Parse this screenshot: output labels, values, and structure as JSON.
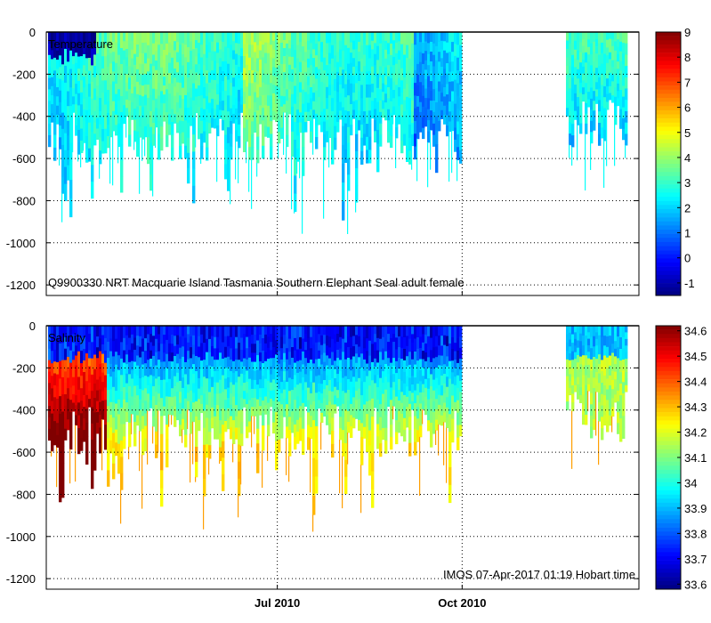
{
  "chart_data": [
    {
      "type": "heatmap",
      "panel": "top",
      "title": "Temperature",
      "ylim": [
        -1250,
        0
      ],
      "yticks": [
        0,
        -200,
        -400,
        -600,
        -800,
        -1000,
        -1200
      ],
      "ytick_labels": [
        "0",
        "-200",
        "-400",
        "-600",
        "-800",
        "-1000",
        "-1200"
      ],
      "xlim": [
        "2010-03-08",
        "2010-12-28"
      ],
      "xticks": [
        "2010-07-01",
        "2010-10-01"
      ],
      "colorbar": {
        "min": -1.5,
        "max": 9,
        "ticks": [
          9,
          8,
          7,
          6,
          5,
          4,
          3,
          2,
          1,
          0,
          -1
        ],
        "tick_labels": [
          "9",
          "8",
          "7",
          "6",
          "5",
          "4",
          "3",
          "2",
          "1",
          "0",
          "-1"
        ]
      },
      "annotation": "Q9900330 NRT Macquarie Island Tasmania Southern Elephant Seal adult female",
      "data_gap": [
        "2010-10-01",
        "2010-11-20"
      ]
    },
    {
      "type": "heatmap",
      "panel": "bottom",
      "title": "Salinity",
      "ylim": [
        -1250,
        0
      ],
      "yticks": [
        0,
        -200,
        -400,
        -600,
        -800,
        -1000,
        -1200
      ],
      "ytick_labels": [
        "0",
        "-200",
        "-400",
        "-600",
        "-800",
        "-1000",
        "-1200"
      ],
      "xlim": [
        "2010-03-08",
        "2010-12-28"
      ],
      "xticks": [
        "2010-07-01",
        "2010-10-01"
      ],
      "xtick_labels": [
        "Jul 2010",
        "Oct 2010"
      ],
      "colorbar": {
        "min": 33.58,
        "max": 34.62,
        "ticks": [
          34.6,
          34.5,
          34.4,
          34.3,
          34.2,
          34.1,
          34,
          33.9,
          33.8,
          33.7,
          33.6
        ],
        "tick_labels": [
          "34.6",
          "34.5",
          "34.4",
          "34.3",
          "34.2",
          "34.1",
          "34",
          "33.9",
          "33.8",
          "33.7",
          "33.6"
        ]
      },
      "annotation": "IMOS 07-Apr-2017 01:19 Hobart time",
      "data_gap": [
        "2010-10-01",
        "2010-11-20"
      ]
    }
  ]
}
